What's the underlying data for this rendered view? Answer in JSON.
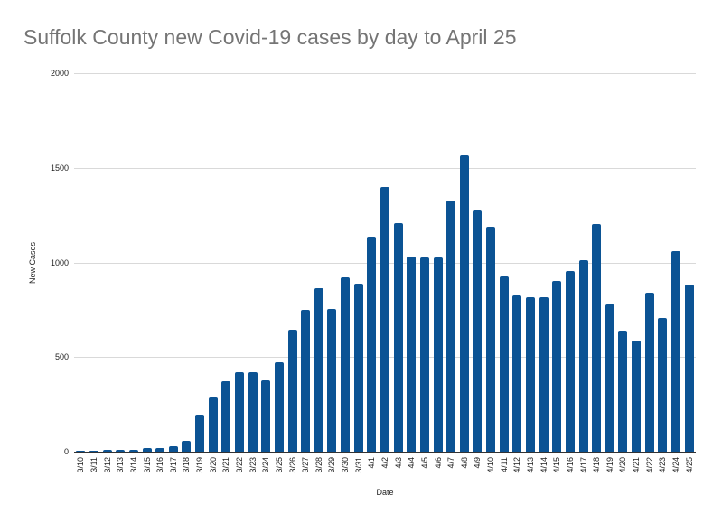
{
  "chart_data": {
    "type": "bar",
    "title": "Suffolk County new Covid-19 cases by day to April 25",
    "xlabel": "Date",
    "ylabel": "New Cases",
    "ylim": [
      0,
      2000
    ],
    "yticks": [
      0,
      500,
      1000,
      1500,
      2000
    ],
    "grid": true,
    "legend": null,
    "bar_color": "#0b5394",
    "categories": [
      "3/10",
      "3/11",
      "3/12",
      "3/13",
      "3/14",
      "3/15",
      "3/16",
      "3/17",
      "3/18",
      "3/19",
      "3/20",
      "3/21",
      "3/22",
      "3/23",
      "3/24",
      "3/25",
      "3/26",
      "3/27",
      "3/28",
      "3/29",
      "3/30",
      "3/31",
      "4/1",
      "4/2",
      "4/3",
      "4/4",
      "4/5",
      "4/6",
      "4/7",
      "4/8",
      "4/9",
      "4/10",
      "4/11",
      "4/12",
      "4/13",
      "4/14",
      "4/15",
      "4/16",
      "4/17",
      "4/18",
      "4/19",
      "4/20",
      "4/21",
      "4/22",
      "4/23",
      "4/24",
      "4/25"
    ],
    "values": [
      4,
      4,
      8,
      8,
      8,
      20,
      20,
      27,
      59,
      194,
      286,
      371,
      420,
      420,
      379,
      474,
      645,
      749,
      864,
      754,
      921,
      888,
      1136,
      1398,
      1208,
      1031,
      1026,
      1026,
      1327,
      1566,
      1274,
      1189,
      927,
      826,
      818,
      815,
      902,
      955,
      1012,
      1201,
      780,
      638,
      586,
      839,
      705,
      1061,
      885
    ]
  }
}
